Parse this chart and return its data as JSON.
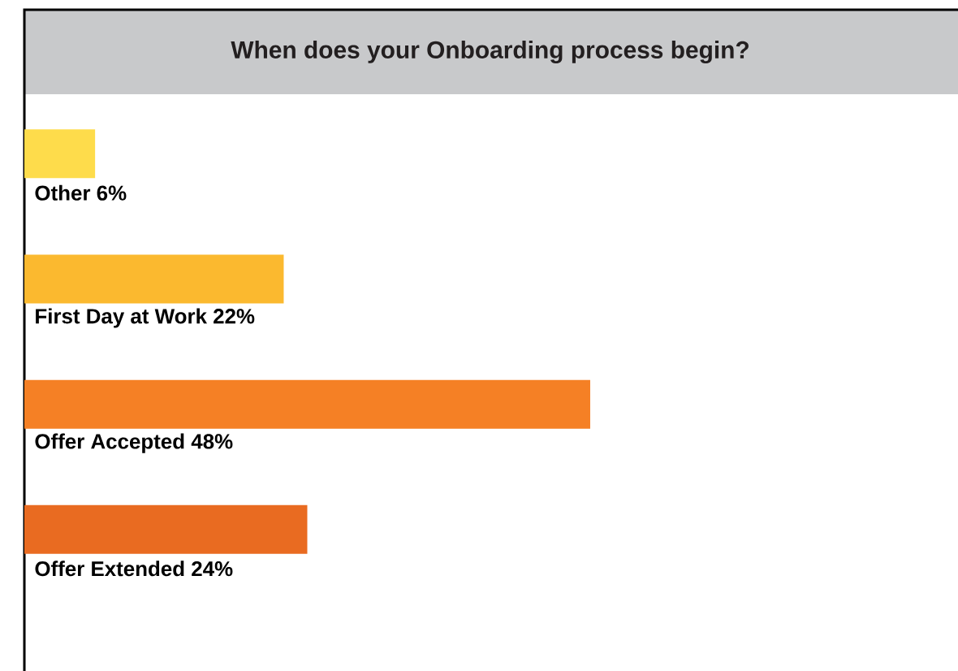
{
  "chart_data": {
    "type": "bar",
    "orientation": "horizontal",
    "title": "When does your Onboarding process begin?",
    "categories": [
      "Other",
      "First Day at Work",
      "Offer Accepted",
      "Offer Extended"
    ],
    "values": [
      6,
      22,
      48,
      24
    ],
    "value_labels": [
      "6%",
      "22%",
      "48%",
      "24%"
    ],
    "colors": [
      "#fedc4b",
      "#fbb92f",
      "#f58025",
      "#e96b21"
    ]
  }
}
